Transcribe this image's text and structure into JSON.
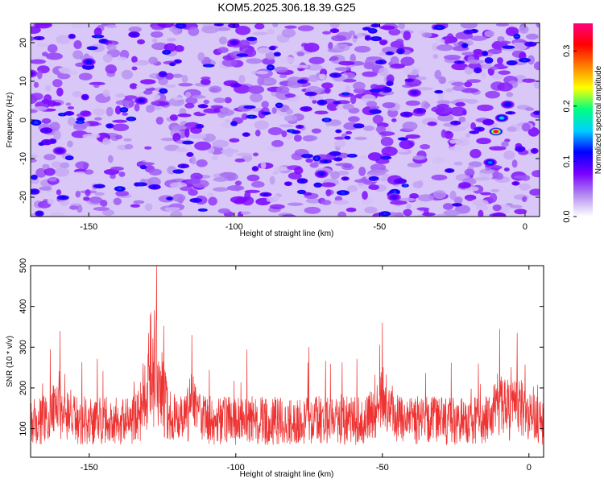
{
  "title": "KOM5.2025.306.18.39.G25",
  "chart_data": [
    {
      "type": "heatmap",
      "xlabel": "Height of straight line (km)",
      "ylabel": "Frequency (Hz)",
      "xlim": [
        -170,
        5
      ],
      "ylim": [
        -25,
        25
      ],
      "x_ticks": [
        -150,
        -100,
        -50,
        0
      ],
      "y_ticks": [
        -20,
        -10,
        0,
        10,
        20
      ],
      "grid": false,
      "colorbar": {
        "label": "Normalized spectral amplitude",
        "range": [
          0.0,
          0.35
        ],
        "ticks": [
          0.0,
          0.1,
          0.2,
          0.3
        ],
        "colors": [
          "#ffffff",
          "#b38cf0",
          "#7a00ff",
          "#0000ff",
          "#00d0ff",
          "#00ff80",
          "#ffff00",
          "#ff8000",
          "#ff0000",
          "#ff0080"
        ]
      },
      "hotspots": [
        {
          "x": -10,
          "y": -3,
          "value": 0.33
        },
        {
          "x": -8,
          "y": 0.5,
          "value": 0.16
        },
        {
          "x": -12,
          "y": -11,
          "value": 0.14
        },
        {
          "x": -6,
          "y": 4,
          "value": 0.12
        },
        {
          "x": -150,
          "y": 15,
          "value": 0.12
        },
        {
          "x": -132,
          "y": 5,
          "value": 0.11
        },
        {
          "x": -70,
          "y": -14,
          "value": 0.11
        },
        {
          "x": -38,
          "y": 7,
          "value": 0.1
        },
        {
          "x": -160,
          "y": -8,
          "value": 0.1
        },
        {
          "x": -100,
          "y": 20,
          "value": 0.1
        },
        {
          "x": -45,
          "y": -20,
          "value": 0.1
        },
        {
          "x": -170,
          "y": 12,
          "value": 0.09
        }
      ]
    },
    {
      "type": "line",
      "xlabel": "Height of straight line (km)",
      "ylabel": "SNR (10 * v/v)",
      "xlim": [
        -170,
        5
      ],
      "ylim": [
        30,
        500
      ],
      "x_ticks": [
        -150,
        -100,
        -50,
        0
      ],
      "y_ticks": [
        100,
        200,
        300,
        400,
        500
      ],
      "grid": false,
      "series": [
        {
          "color": "#ee3333",
          "baseline": 120,
          "noise": 60,
          "peaks": [
            {
              "x": -127,
              "y": 500
            },
            {
              "x": -129,
              "y": 385
            },
            {
              "x": -10,
              "y": 345
            },
            {
              "x": -4,
              "y": 335
            },
            {
              "x": -160,
              "y": 340
            },
            {
              "x": -115,
              "y": 330
            },
            {
              "x": -50,
              "y": 360
            }
          ]
        }
      ]
    }
  ]
}
